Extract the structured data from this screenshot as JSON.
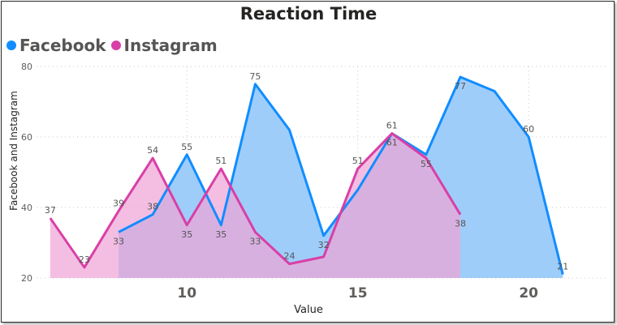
{
  "chart_data": {
    "type": "area",
    "title": "Reaction Time",
    "xlabel": "Value",
    "ylabel": "Facebook and Instagram",
    "xlim": [
      5.6,
      22.3
    ],
    "ylim": [
      20,
      80
    ],
    "x_ticks": [
      10,
      15,
      20
    ],
    "y_ticks": [
      20,
      40,
      60,
      80
    ],
    "grid": true,
    "legend": "top-left",
    "series": [
      {
        "name": "Facebook",
        "color": "#118dff",
        "fill": "#9fcdfa",
        "x": [
          8,
          9,
          10,
          11,
          12,
          13,
          14,
          15,
          16,
          17,
          18,
          19,
          20,
          21
        ],
        "values": [
          33,
          38,
          55,
          35,
          75,
          62,
          32,
          45,
          61,
          55,
          77,
          73,
          60,
          21
        ]
      },
      {
        "name": "Instagram",
        "color": "#d93fa6",
        "fill": "#efa5d5",
        "x": [
          6,
          7,
          8,
          9,
          10,
          11,
          12,
          13,
          14,
          15,
          16,
          17,
          18
        ],
        "values": [
          37,
          23,
          39,
          54,
          35,
          51,
          33,
          24,
          26,
          51,
          61,
          54,
          38
        ]
      }
    ],
    "data_labels": {
      "Facebook": [
        "33",
        "38",
        "55",
        "35",
        "75",
        "",
        "32",
        "",
        "61",
        "55",
        "77",
        "",
        "60",
        "21"
      ],
      "Instagram": [
        "37",
        "23",
        "39",
        "54",
        "35",
        "51",
        "33",
        "24",
        "",
        "51",
        "61",
        "",
        "38"
      ]
    }
  }
}
